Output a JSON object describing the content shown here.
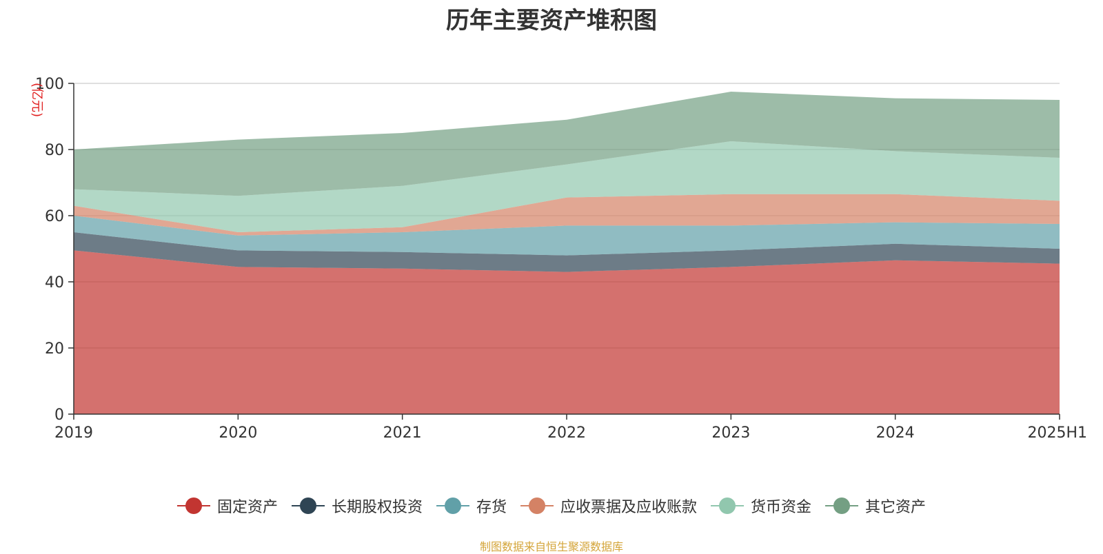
{
  "title": "历年主要资产堆积图",
  "source_note": "制图数据来自恒生聚源数据库",
  "chart_data": {
    "type": "area",
    "stacked": true,
    "title": "历年主要资产堆积图",
    "ylabel": "(亿元)",
    "xlabel": "",
    "ylim": [
      0,
      100
    ],
    "yticks": [
      0,
      20,
      40,
      60,
      80,
      100
    ],
    "grid": true,
    "legend_position": "bottom",
    "categories": [
      "2019",
      "2020",
      "2021",
      "2022",
      "2023",
      "2024",
      "2025H1"
    ],
    "series": [
      {
        "name": "固定资产",
        "color": "#c23531",
        "values": [
          49.5,
          44.5,
          44.0,
          43.0,
          44.5,
          46.5,
          45.5
        ]
      },
      {
        "name": "长期股权投资",
        "color": "#2f4554",
        "values": [
          5.5,
          5.0,
          5.0,
          5.0,
          5.0,
          5.0,
          4.5
        ]
      },
      {
        "name": "存货",
        "color": "#61a0a8",
        "values": [
          5.0,
          4.5,
          6.0,
          9.0,
          7.5,
          6.5,
          7.5
        ]
      },
      {
        "name": "应收票据及应收账款",
        "color": "#d48265",
        "values": [
          3.0,
          1.0,
          1.5,
          8.5,
          9.5,
          8.5,
          7.0
        ]
      },
      {
        "name": "货币资金",
        "color": "#91c7ae",
        "values": [
          5.0,
          11.0,
          12.5,
          10.0,
          16.0,
          13.0,
          13.0
        ]
      },
      {
        "name": "其它资产",
        "color": "#749f83",
        "values": [
          12.0,
          17.0,
          16.0,
          13.5,
          15.0,
          16.0,
          17.5
        ]
      }
    ]
  }
}
